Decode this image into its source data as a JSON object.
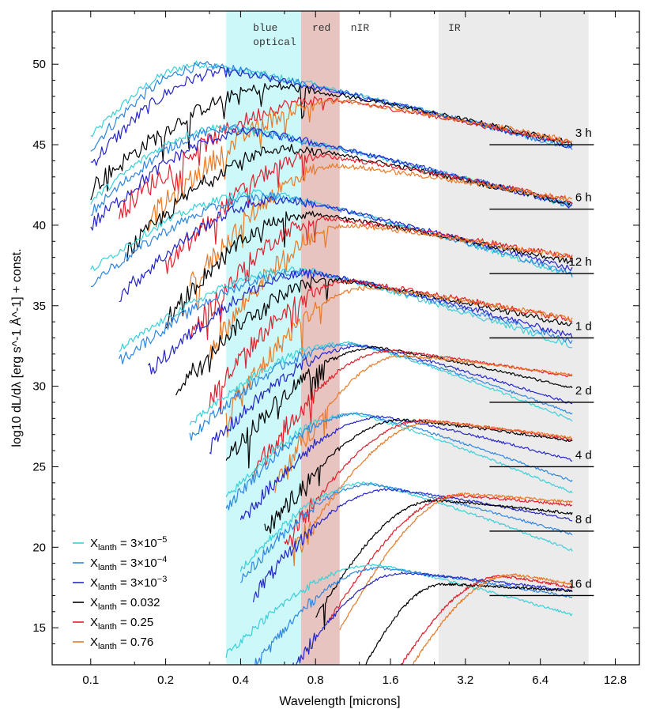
{
  "chart_data": {
    "type": "line",
    "xlabel": "Wavelength [microns]",
    "ylabel": "log10 dL/dλ [erg s^-1 Å^-1] + const.",
    "xscale": "log2",
    "xlim": [
      0.07,
      16
    ],
    "ylim": [
      12.7,
      53.3
    ],
    "xticks": [
      0.1,
      0.2,
      0.4,
      0.8,
      1.6,
      3.2,
      6.4,
      12.8
    ],
    "xtick_labels": [
      "0.1",
      "0.2",
      "0.4",
      "0.8",
      "1.6",
      "3.2",
      "6.4",
      "12.8"
    ],
    "yticks": [
      15,
      20,
      25,
      30,
      35,
      40,
      45,
      50
    ],
    "ytick_labels": [
      "15",
      "20",
      "25",
      "30",
      "35",
      "40",
      "45",
      "50"
    ],
    "bands": [
      {
        "label": "blue",
        "label2": "optical",
        "x0": 0.35,
        "x1": 0.7,
        "color": "#ccf8fa"
      },
      {
        "label": "red",
        "label2": "",
        "x0": 0.7,
        "x1": 1.0,
        "color": "#e8c4c1"
      },
      {
        "label": "nIR",
        "label2": "",
        "x0": 1.0,
        "x1": 2.5,
        "color": ""
      },
      {
        "label": "IR",
        "label2": "",
        "x0": 2.5,
        "x1": 10.0,
        "color": "#ebebeb"
      }
    ],
    "legend": {
      "position": "bottom-left",
      "entries": [
        {
          "label": "X",
          "sub": "lanth",
          "value": "= 3×10",
          "sup": "−5",
          "color": "#3ad0d8"
        },
        {
          "label": "X",
          "sub": "lanth",
          "value": "= 3×10",
          "sup": "−4",
          "color": "#2e86e0"
        },
        {
          "label": "X",
          "sub": "lanth",
          "value": "= 3×10",
          "sup": "−3",
          "color": "#2626c8"
        },
        {
          "label": "X",
          "sub": "lanth",
          "value": "= 0.032",
          "sup": "",
          "color": "#000000"
        },
        {
          "label": "X",
          "sub": "lanth",
          "value": "= 0.25",
          "sup": "",
          "color": "#e0202c"
        },
        {
          "label": "X",
          "sub": "lanth",
          "value": "= 0.76",
          "sup": "",
          "color": "#e87a28"
        }
      ]
    },
    "epochs": [
      {
        "label": "3 h",
        "baseline": 45.0,
        "start": [
          0.1,
          0.1,
          0.1,
          0.1,
          0.13,
          0.17
        ],
        "peak_x": [
          0.28,
          0.3,
          0.35,
          0.6,
          0.9,
          1.0
        ],
        "peak_y": [
          50.0,
          49.9,
          49.5,
          48.6,
          47.8,
          47.7
        ],
        "end_y": [
          44.8,
          44.8,
          44.9,
          45.1,
          45.1,
          45.2
        ]
      },
      {
        "label": "6 h",
        "baseline": 41.0,
        "start": [
          0.1,
          0.1,
          0.1,
          0.14,
          0.2,
          0.25
        ],
        "peak_x": [
          0.35,
          0.37,
          0.45,
          0.65,
          0.85,
          1.0
        ],
        "peak_y": [
          46.1,
          46.0,
          45.8,
          44.8,
          44.3,
          43.7
        ],
        "end_y": [
          41.2,
          41.2,
          41.2,
          41.3,
          41.5,
          41.6
        ]
      },
      {
        "label": "12 h",
        "baseline": 37.0,
        "start": [
          0.1,
          0.1,
          0.13,
          0.2,
          0.25,
          0.3
        ],
        "peak_x": [
          0.5,
          0.55,
          0.6,
          0.75,
          0.9,
          1.1
        ],
        "peak_y": [
          42.0,
          41.8,
          41.6,
          40.7,
          40.4,
          40.0
        ],
        "end_y": [
          36.9,
          37.0,
          37.3,
          37.7,
          38.0,
          38.0
        ]
      },
      {
        "label": "1 d",
        "baseline": 33.0,
        "start": [
          0.13,
          0.13,
          0.17,
          0.22,
          0.3,
          0.35
        ],
        "peak_x": [
          0.7,
          0.75,
          0.8,
          0.95,
          1.1,
          1.3
        ],
        "peak_y": [
          37.2,
          37.1,
          37.0,
          36.6,
          36.5,
          36.1
        ],
        "end_y": [
          32.5,
          32.8,
          33.1,
          33.8,
          34.1,
          34.2
        ]
      },
      {
        "label": "2 d",
        "baseline": 29.0,
        "start": [
          0.25,
          0.25,
          0.3,
          0.35,
          0.45,
          0.55
        ],
        "peak_x": [
          1.1,
          1.15,
          1.25,
          1.4,
          1.6,
          1.8
        ],
        "peak_y": [
          32.7,
          32.6,
          32.5,
          32.4,
          32.2,
          31.9
        ],
        "end_y": [
          27.9,
          28.3,
          28.9,
          29.9,
          30.6,
          30.7
        ]
      },
      {
        "label": "4 d",
        "baseline": 25.0,
        "start": [
          0.35,
          0.35,
          0.4,
          0.5,
          0.6,
          0.65
        ],
        "peak_x": [
          1.15,
          1.2,
          1.5,
          1.8,
          2.2,
          2.4
        ],
        "peak_y": [
          28.3,
          28.3,
          28.1,
          27.9,
          27.9,
          27.8
        ],
        "end_y": [
          23.4,
          24.1,
          25.4,
          26.6,
          26.7,
          26.8
        ]
      },
      {
        "label": "8 d",
        "baseline": 21.0,
        "start": [
          0.4,
          0.4,
          0.45,
          0.8,
          0.9,
          1.0
        ],
        "peak_x": [
          1.3,
          1.35,
          1.6,
          2.4,
          3.0,
          3.2
        ],
        "peak_y": [
          24.0,
          23.9,
          23.6,
          22.9,
          23.2,
          23.3
        ],
        "end_y": [
          19.8,
          20.8,
          21.7,
          22.1,
          22.6,
          22.8
        ]
      },
      {
        "label": "16 d",
        "baseline": 17.0,
        "start": [
          0.35,
          0.45,
          0.6,
          1.05,
          1.4,
          1.5
        ],
        "peak_x": [
          1.4,
          1.45,
          1.8,
          2.6,
          4.5,
          5.0
        ],
        "peak_y": [
          18.9,
          18.7,
          18.4,
          17.7,
          18.2,
          18.3
        ],
        "end_y": [
          15.8,
          16.9,
          17.3,
          17.3,
          17.5,
          17.7
        ]
      }
    ],
    "series_colors": [
      "#3ad0d8",
      "#2e86e0",
      "#2626c8",
      "#000000",
      "#e0202c",
      "#e87a28"
    ]
  }
}
